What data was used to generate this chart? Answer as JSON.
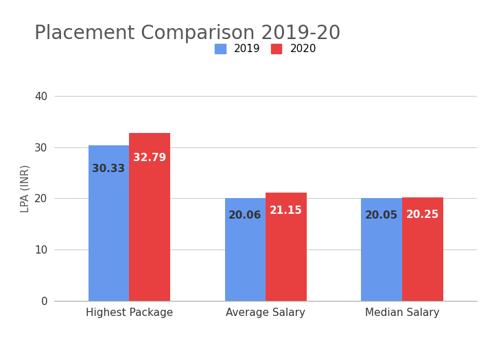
{
  "title": "Placement Comparison 2019-20",
  "categories": [
    "Highest Package",
    "Average Salary",
    "Median Salary"
  ],
  "values_2019": [
    30.33,
    20.06,
    20.05
  ],
  "values_2020": [
    32.79,
    21.15,
    20.25
  ],
  "color_2019": "#6699EE",
  "color_2020": "#E84040",
  "ylabel": "LPA (INR)",
  "ylim": [
    0,
    44
  ],
  "yticks": [
    0,
    10,
    20,
    30,
    40
  ],
  "legend_labels": [
    "2019",
    "2020"
  ],
  "title_fontsize": 20,
  "label_fontsize": 11,
  "tick_fontsize": 11,
  "bar_width": 0.3,
  "background_color": "#ffffff",
  "grid_color": "#cccccc",
  "label_color_2019": "#333333",
  "label_color_2020": "#ffffff"
}
